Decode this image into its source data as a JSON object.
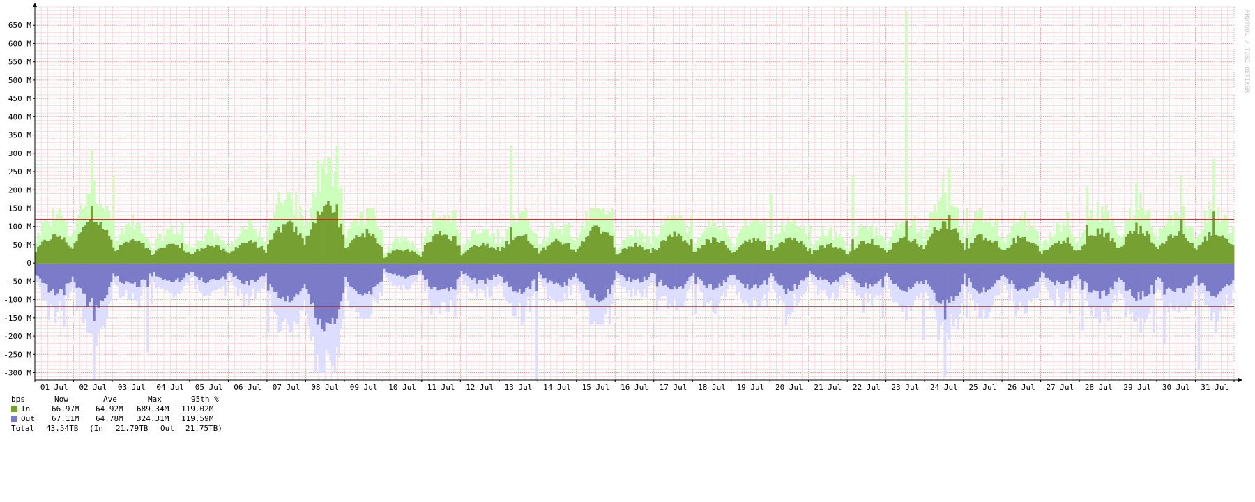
{
  "chart_data": {
    "type": "area",
    "y_unit_label": "bps",
    "ylim": [
      -320,
      700
    ],
    "y_ticks": [
      -300,
      -250,
      -200,
      -150,
      -100,
      -50,
      0,
      50,
      100,
      150,
      200,
      250,
      300,
      350,
      400,
      450,
      500,
      550,
      600,
      650
    ],
    "y_tick_labels": [
      "-300 M",
      "-250 M",
      "-200 M",
      "-150 M",
      "-100 M",
      "-50 M",
      "0",
      "50 M",
      "100 M",
      "150 M",
      "200 M",
      "250 M",
      "300 M",
      "350 M",
      "400 M",
      "450 M",
      "500 M",
      "550 M",
      "600 M",
      "650 M"
    ],
    "x_days": [
      "01 Jul",
      "02 Jul",
      "03 Jul",
      "04 Jul",
      "05 Jul",
      "06 Jul",
      "07 Jul",
      "08 Jul",
      "09 Jul",
      "10 Jul",
      "11 Jul",
      "12 Jul",
      "13 Jul",
      "14 Jul",
      "15 Jul",
      "16 Jul",
      "17 Jul",
      "18 Jul",
      "19 Jul",
      "20 Jul",
      "21 Jul",
      "22 Jul",
      "23 Jul",
      "24 Jul",
      "25 Jul",
      "26 Jul",
      "27 Jul",
      "28 Jul",
      "29 Jul",
      "30 Jul",
      "31 Jul"
    ],
    "series": [
      {
        "name": "In",
        "color": "#77a033",
        "peak_color": "#ccffbb",
        "avg": [
          58,
          92,
          48,
          40,
          38,
          45,
          82,
          125,
          66,
          30,
          65,
          40,
          60,
          48,
          75,
          38,
          60,
          50,
          52,
          55,
          40,
          48,
          55,
          88,
          58,
          55,
          45,
          68,
          72,
          62,
          65
        ],
        "max": [
          150,
          310,
          240,
          110,
          92,
          120,
          195,
          320,
          150,
          72,
          145,
          92,
          320,
          110,
          150,
          92,
          130,
          120,
          122,
          190,
          105,
          240,
          689,
          260,
          150,
          142,
          140,
          210,
          220,
          240,
          285
        ]
      },
      {
        "name": "Out",
        "color": "#7b7bc8",
        "peak_color": "#ddddff",
        "avg": [
          62,
          90,
          50,
          42,
          40,
          44,
          80,
          140,
          70,
          32,
          63,
          42,
          62,
          50,
          76,
          40,
          58,
          52,
          54,
          56,
          42,
          50,
          58,
          92,
          60,
          56,
          46,
          70,
          74,
          64,
          66
        ],
        "max": [
          175,
          318,
          245,
          112,
          90,
          118,
          190,
          300,
          152,
          74,
          146,
          94,
          324,
          108,
          168,
          94,
          128,
          140,
          120,
          170,
          104,
          150,
          210,
          310,
          152,
          144,
          138,
          185,
          190,
          220,
          290
        ]
      }
    ],
    "threshold_lines": [
      119.02,
      -119.59
    ],
    "threshold_color": "#bb2222",
    "grid": true,
    "legend": {
      "header": {
        "unit": "bps",
        "now": "Now",
        "ave": "Ave",
        "max": "Max",
        "p95": "95th %"
      },
      "rows": [
        {
          "label": "In",
          "now": "66.97M",
          "ave": "64.92M",
          "max": "689.34M",
          "p95": "119.02M",
          "color": "#77a033"
        },
        {
          "label": "Out",
          "now": "67.11M",
          "ave": "64.78M",
          "max": "324.31M",
          "p95": "119.59M",
          "color": "#7b7bc8"
        }
      ],
      "total": {
        "label": "Total",
        "value": "43.54TB",
        "in_label": "(In",
        "in_value": "21.79TB",
        "out_label": "Out",
        "out_value": "21.75TB)"
      }
    },
    "watermark": "RRDTOOL / TOBI OETIKER"
  }
}
